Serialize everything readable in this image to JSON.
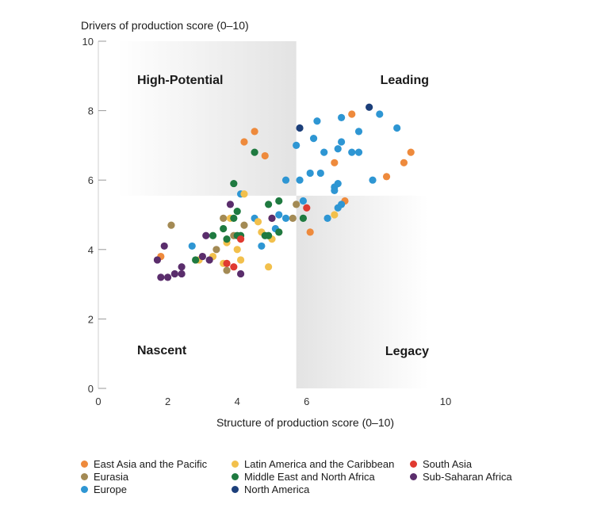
{
  "chart_data": {
    "type": "scatter",
    "xlabel": "Structure of production score (0–10)",
    "ylabel": "Drivers of production score (0–10)",
    "xlim": [
      0,
      10
    ],
    "ylim": [
      0,
      10
    ],
    "x_ticks": [
      "0",
      "2",
      "4",
      "6",
      "10"
    ],
    "y_ticks": [
      "0",
      "2",
      "4",
      "6",
      "8",
      "10"
    ],
    "quadrant_split": {
      "x": 5.7,
      "y": 5.55
    },
    "quadrant_labels": {
      "top_left": "High-Potential",
      "top_right": "Leading",
      "bottom_left": "Nascent",
      "bottom_right": "Legacy"
    },
    "grid": false,
    "legend_position": "bottom",
    "series": [
      {
        "name": "East Asia and the Pacific",
        "color": "#ee8a3c",
        "points": [
          [
            1.8,
            3.8
          ],
          [
            4.2,
            7.1
          ],
          [
            4.5,
            7.4
          ],
          [
            4.8,
            6.7
          ],
          [
            7.3,
            7.9
          ],
          [
            9.0,
            6.8
          ],
          [
            8.8,
            6.5
          ],
          [
            8.3,
            6.1
          ],
          [
            6.8,
            6.5
          ],
          [
            7.1,
            5.4
          ],
          [
            6.1,
            4.5
          ],
          [
            5.0,
            4.9
          ]
        ]
      },
      {
        "name": "Eurasia",
        "color": "#a38a54",
        "points": [
          [
            2.1,
            4.7
          ],
          [
            3.4,
            4.0
          ],
          [
            3.7,
            3.4
          ],
          [
            3.9,
            4.4
          ],
          [
            4.2,
            4.7
          ],
          [
            5.7,
            5.3
          ],
          [
            5.6,
            4.9
          ],
          [
            5.2,
            4.5
          ],
          [
            3.6,
            4.9
          ]
        ]
      },
      {
        "name": "Europe",
        "color": "#2e96d3",
        "points": [
          [
            6.3,
            7.7
          ],
          [
            7.0,
            7.8
          ],
          [
            7.5,
            7.4
          ],
          [
            8.1,
            7.9
          ],
          [
            8.6,
            7.5
          ],
          [
            5.7,
            7.0
          ],
          [
            6.2,
            7.2
          ],
          [
            6.5,
            6.8
          ],
          [
            6.9,
            6.9
          ],
          [
            7.0,
            7.1
          ],
          [
            7.3,
            6.8
          ],
          [
            7.5,
            6.8
          ],
          [
            6.1,
            6.2
          ],
          [
            6.4,
            6.2
          ],
          [
            5.4,
            6.0
          ],
          [
            5.8,
            6.0
          ],
          [
            6.8,
            5.8
          ],
          [
            6.9,
            5.9
          ],
          [
            7.9,
            6.0
          ],
          [
            6.8,
            5.7
          ],
          [
            5.9,
            5.4
          ],
          [
            4.1,
            5.6
          ],
          [
            7.0,
            5.3
          ],
          [
            6.6,
            4.9
          ],
          [
            4.5,
            4.9
          ],
          [
            5.2,
            5.0
          ],
          [
            5.4,
            4.9
          ],
          [
            5.1,
            4.6
          ],
          [
            4.7,
            4.1
          ],
          [
            2.7,
            4.1
          ],
          [
            6.9,
            5.2
          ]
        ]
      },
      {
        "name": "Latin America and the Caribbean",
        "color": "#f2c04c",
        "points": [
          [
            4.2,
            5.6
          ],
          [
            4.6,
            4.8
          ],
          [
            3.8,
            4.9
          ],
          [
            4.7,
            4.5
          ],
          [
            5.0,
            4.3
          ],
          [
            4.0,
            4.0
          ],
          [
            4.1,
            3.7
          ],
          [
            3.7,
            4.2
          ],
          [
            3.3,
            3.8
          ],
          [
            2.9,
            3.7
          ],
          [
            3.6,
            3.6
          ],
          [
            4.9,
            3.5
          ],
          [
            6.8,
            5.0
          ]
        ]
      },
      {
        "name": "Middle East and North Africa",
        "color": "#1f7a40",
        "points": [
          [
            4.5,
            6.8
          ],
          [
            3.9,
            5.9
          ],
          [
            4.0,
            5.1
          ],
          [
            4.9,
            5.3
          ],
          [
            5.2,
            5.4
          ],
          [
            3.9,
            4.9
          ],
          [
            3.6,
            4.6
          ],
          [
            3.7,
            4.3
          ],
          [
            4.1,
            4.4
          ],
          [
            4.0,
            4.4
          ],
          [
            4.9,
            4.4
          ],
          [
            5.2,
            4.5
          ],
          [
            4.8,
            4.4
          ],
          [
            5.9,
            4.9
          ],
          [
            2.8,
            3.7
          ],
          [
            3.3,
            4.4
          ]
        ]
      },
      {
        "name": "North America",
        "color": "#1c3f7a",
        "points": [
          [
            5.8,
            7.5
          ],
          [
            7.8,
            8.1
          ]
        ]
      },
      {
        "name": "South Asia",
        "color": "#e03a30",
        "points": [
          [
            6.0,
            5.2
          ],
          [
            4.1,
            4.3
          ],
          [
            3.7,
            3.6
          ],
          [
            3.9,
            3.5
          ]
        ]
      },
      {
        "name": "Sub-Saharan Africa",
        "color": "#5a2d6c",
        "points": [
          [
            1.7,
            3.7
          ],
          [
            1.9,
            4.1
          ],
          [
            2.0,
            3.2
          ],
          [
            1.8,
            3.2
          ],
          [
            2.2,
            3.3
          ],
          [
            2.4,
            3.3
          ],
          [
            2.4,
            3.5
          ],
          [
            3.0,
            3.8
          ],
          [
            3.2,
            3.7
          ],
          [
            3.1,
            4.4
          ],
          [
            3.8,
            5.3
          ],
          [
            5.0,
            4.9
          ],
          [
            4.1,
            3.3
          ]
        ]
      }
    ]
  }
}
